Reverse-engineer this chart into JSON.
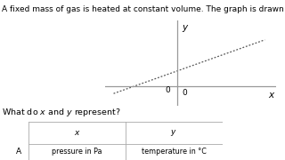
{
  "title": "A fixed mass of gas is heated at constant volume. The graph is drawn for this proce",
  "question": "What do x and y represent?",
  "table_headers": [
    "x",
    "y"
  ],
  "table_row_label": "A",
  "table_row_x": "pressure in Pa",
  "table_row_y": "temperature in °C",
  "graph": {
    "line_x": [
      -0.55,
      0.75
    ],
    "line_slope": 0.38,
    "line_intercept": 0.14,
    "axis_color": "#999999",
    "line_color": "#555555",
    "xlim": [
      -0.62,
      0.85
    ],
    "ylim": [
      -0.18,
      0.6
    ]
  },
  "bg_color": "#ffffff",
  "text_color": "#000000",
  "title_fontsize": 6.5,
  "question_fontsize": 6.8,
  "label_fontsize": 7.5,
  "zero_fontsize": 6.5,
  "table_fontsize": 6.5,
  "table_cell_fontsize": 5.8
}
